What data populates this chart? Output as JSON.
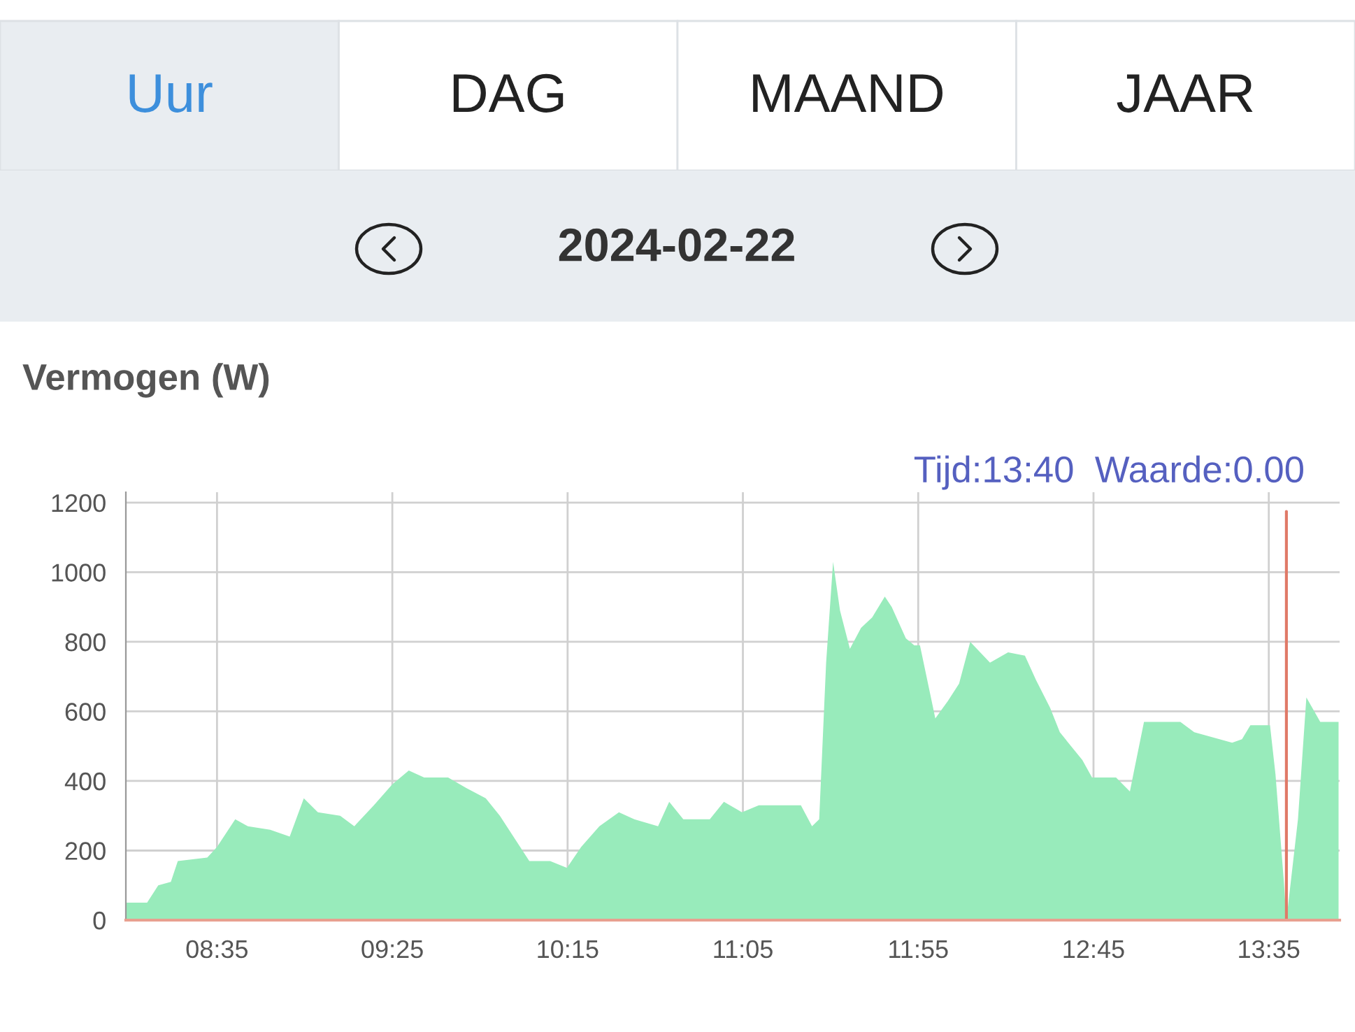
{
  "chart_data": {
    "type": "area",
    "title": "Vermogen (W)",
    "subtitle": "2024-02-22",
    "annotations": [
      "Uur",
      "DAG",
      "MAAND",
      "JAAR",
      "Tijd:13:40  Waarde:0.00"
    ],
    "x": [
      8.151,
      8.251,
      8.304,
      8.364,
      8.397,
      8.537,
      8.583,
      8.67,
      8.73,
      8.836,
      8.929,
      8.996,
      9.063,
      9.169,
      9.236,
      9.329,
      9.416,
      9.495,
      9.568,
      9.682,
      9.768,
      9.861,
      9.928,
      10.014,
      10.068,
      10.167,
      10.247,
      10.314,
      10.401,
      10.494,
      10.567,
      10.68,
      10.733,
      10.8,
      10.926,
      10.993,
      11.079,
      11.159,
      11.359,
      11.412,
      11.446,
      11.479,
      11.512,
      11.545,
      11.592,
      11.645,
      11.698,
      11.758,
      11.791,
      11.858,
      11.898,
      11.925,
      11.998,
      12.058,
      12.111,
      12.164,
      12.258,
      12.344,
      12.424,
      12.477,
      12.544,
      12.59,
      12.697,
      12.743,
      12.857,
      12.923,
      12.943,
      12.99,
      13.163,
      13.229,
      13.409,
      13.456,
      13.496,
      13.589,
      13.615,
      13.655,
      13.667,
      13.722,
      13.762,
      13.828,
      13.915
    ],
    "series": [
      {
        "color": "#98ebbb",
        "values": [
          50,
          50,
          100,
          110,
          170,
          180,
          210,
          290,
          270,
          260,
          240,
          350,
          310,
          300,
          270,
          330,
          390,
          430,
          410,
          410,
          380,
          350,
          300,
          220,
          170,
          170,
          150,
          210,
          270,
          310,
          290,
          270,
          340,
          290,
          290,
          340,
          310,
          330,
          330,
          270,
          290,
          740,
          1030,
          890,
          780,
          840,
          870,
          930,
          900,
          810,
          790,
          790,
          580,
          630,
          680,
          800,
          740,
          770,
          760,
          690,
          610,
          540,
          460,
          410,
          410,
          370,
          430,
          570,
          570,
          540,
          510,
          520,
          560,
          560,
          420,
          110,
          0,
          290,
          640,
          570,
          570
        ]
      }
    ],
    "xlim": [
      8.15,
      13.92
    ],
    "ylim": [
      0,
      1230
    ],
    "xticks": [
      {
        "value": 8.5833,
        "label": "08:35"
      },
      {
        "value": 9.4167,
        "label": "09:25"
      },
      {
        "value": 10.25,
        "label": "10:15"
      },
      {
        "value": 11.0833,
        "label": "11:05"
      },
      {
        "value": 11.9167,
        "label": "11:55"
      },
      {
        "value": 12.75,
        "label": "12:45"
      },
      {
        "value": 13.5833,
        "label": "13:35"
      }
    ],
    "yticks": [
      0,
      200,
      400,
      600,
      800,
      1000,
      1200
    ],
    "ref_lines": [
      {
        "axis": "x",
        "value": 13.667,
        "color": "#e07a68"
      }
    ],
    "grid": true,
    "legend": false
  }
}
